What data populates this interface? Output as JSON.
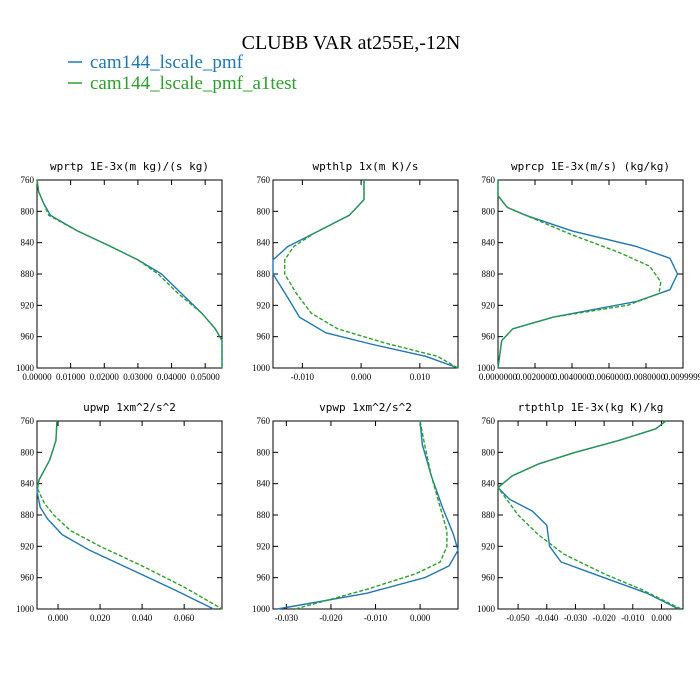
{
  "figure": {
    "title": "CLUBB VAR at255E,-12N",
    "legend": [
      {
        "label": "cam144_lscale_pmf",
        "color": "#1f77b4",
        "dash": "solid"
      },
      {
        "label": "cam144_lscale_pmf_a1test",
        "color": "#2ca02c",
        "dash": "dashed"
      }
    ]
  },
  "chart_data": [
    {
      "type": "line",
      "title": "wprtp  1E-3x(m kg)/(s kg)",
      "xlim": [
        0.0,
        0.055
      ],
      "ylim": [
        760,
        1000
      ],
      "y_inverted": true,
      "xticks": [
        0.0,
        0.01,
        0.02,
        0.03,
        0.04,
        0.05
      ],
      "xtick_labels": [
        "0.00000",
        "0.01000",
        "0.02000",
        "0.03000",
        "0.04000",
        "0.05000"
      ],
      "yticks": [
        760,
        800,
        840,
        880,
        920,
        960,
        1000
      ],
      "ytick_labels": [
        "760",
        "800",
        "840",
        "880",
        "920",
        "960",
        "1000"
      ],
      "series": [
        {
          "name": "cam144_lscale_pmf",
          "color": "#1f77b4",
          "dash": "solid",
          "points": [
            [
              0.0,
              760
            ],
            [
              0.0005,
              775
            ],
            [
              0.002,
              790
            ],
            [
              0.004,
              805
            ],
            [
              0.012,
              825
            ],
            [
              0.022,
              845
            ],
            [
              0.03,
              862
            ],
            [
              0.037,
              880
            ],
            [
              0.043,
              905
            ],
            [
              0.049,
              930
            ],
            [
              0.053,
              950
            ],
            [
              0.055,
              965
            ],
            [
              0.055,
              1000
            ]
          ]
        },
        {
          "name": "cam144_lscale_pmf_a1test",
          "color": "#2ca02c",
          "dash": "dashed",
          "points": [
            [
              0.0,
              760
            ],
            [
              0.0005,
              775
            ],
            [
              0.002,
              790
            ],
            [
              0.0035,
              805
            ],
            [
              0.012,
              825
            ],
            [
              0.022,
              845
            ],
            [
              0.03,
              862
            ],
            [
              0.036,
              880
            ],
            [
              0.042,
              905
            ],
            [
              0.049,
              930
            ],
            [
              0.053,
              950
            ],
            [
              0.055,
              965
            ],
            [
              0.055,
              1000
            ]
          ]
        }
      ]
    },
    {
      "type": "line",
      "title": "wpthlp  1x(m K)/s",
      "xlim": [
        -0.015,
        0.0165
      ],
      "ylim": [
        760,
        1000
      ],
      "y_inverted": true,
      "xticks": [
        -0.01,
        0.0,
        0.01
      ],
      "xtick_labels": [
        "-0.010",
        "0.000",
        "0.010"
      ],
      "yticks": [
        760,
        800,
        840,
        880,
        920,
        960,
        1000
      ],
      "ytick_labels": [
        "760",
        "800",
        "840",
        "880",
        "920",
        "960",
        "1000"
      ],
      "series": [
        {
          "name": "cam144_lscale_pmf",
          "color": "#1f77b4",
          "dash": "solid",
          "points": [
            [
              0.0005,
              760
            ],
            [
              0.0005,
              785
            ],
            [
              -0.002,
              805
            ],
            [
              -0.008,
              828
            ],
            [
              -0.0125,
              845
            ],
            [
              -0.015,
              862
            ],
            [
              -0.015,
              880
            ],
            [
              -0.0125,
              910
            ],
            [
              -0.0105,
              935
            ],
            [
              -0.006,
              955
            ],
            [
              0.002,
              970
            ],
            [
              0.011,
              985
            ],
            [
              0.0165,
              1000
            ]
          ]
        },
        {
          "name": "cam144_lscale_pmf_a1test",
          "color": "#2ca02c",
          "dash": "dashed",
          "points": [
            [
              0.0005,
              760
            ],
            [
              0.0005,
              785
            ],
            [
              -0.002,
              805
            ],
            [
              -0.008,
              828
            ],
            [
              -0.0115,
              845
            ],
            [
              -0.013,
              862
            ],
            [
              -0.013,
              880
            ],
            [
              -0.011,
              905
            ],
            [
              -0.0085,
              930
            ],
            [
              -0.004,
              950
            ],
            [
              0.004,
              968
            ],
            [
              0.013,
              985
            ],
            [
              0.0165,
              1000
            ]
          ]
        }
      ]
    },
    {
      "type": "line",
      "title": "wprcp  1E-3x(m/s) (kg/kg)",
      "xlim": [
        0.0,
        0.01
      ],
      "ylim": [
        760,
        1000
      ],
      "y_inverted": true,
      "xticks": [
        0.0,
        0.002,
        0.004,
        0.006,
        0.008,
        0.01
      ],
      "xtick_labels": [
        "0.0000000",
        "0.0020000",
        "0.0040000",
        "0.0060000",
        "0.0080000",
        "0.0099999"
      ],
      "yticks": [
        760,
        800,
        840,
        880,
        920,
        960,
        1000
      ],
      "ytick_labels": [
        "760",
        "800",
        "840",
        "880",
        "920",
        "960",
        "1000"
      ],
      "series": [
        {
          "name": "cam144_lscale_pmf",
          "color": "#1f77b4",
          "dash": "solid",
          "points": [
            [
              0.0,
              760
            ],
            [
              0.0,
              780
            ],
            [
              0.0005,
              795
            ],
            [
              0.0015,
              805
            ],
            [
              0.004,
              825
            ],
            [
              0.0075,
              845
            ],
            [
              0.0093,
              860
            ],
            [
              0.0097,
              880
            ],
            [
              0.0093,
              900
            ],
            [
              0.0075,
              915
            ],
            [
              0.003,
              935
            ],
            [
              0.0008,
              950
            ],
            [
              0.0002,
              965
            ],
            [
              0.0,
              1000
            ]
          ]
        },
        {
          "name": "cam144_lscale_pmf_a1test",
          "color": "#2ca02c",
          "dash": "dashed",
          "points": [
            [
              0.0,
              760
            ],
            [
              0.0,
              780
            ],
            [
              0.0005,
              795
            ],
            [
              0.0015,
              805
            ],
            [
              0.004,
              830
            ],
            [
              0.0065,
              852
            ],
            [
              0.0082,
              870
            ],
            [
              0.0088,
              890
            ],
            [
              0.0087,
              905
            ],
            [
              0.007,
              920
            ],
            [
              0.003,
              935
            ],
            [
              0.0008,
              950
            ],
            [
              0.0002,
              965
            ],
            [
              0.0,
              1000
            ]
          ]
        }
      ]
    },
    {
      "type": "line",
      "title": "upwp  1xm^2/s^2",
      "xlim": [
        -0.01,
        0.078
      ],
      "ylim": [
        760,
        1000
      ],
      "y_inverted": true,
      "xticks": [
        0.0,
        0.02,
        0.04,
        0.06
      ],
      "xtick_labels": [
        "0.000",
        "0.020",
        "0.040",
        "0.060"
      ],
      "yticks": [
        760,
        800,
        840,
        880,
        920,
        960,
        1000
      ],
      "ytick_labels": [
        "760",
        "800",
        "840",
        "880",
        "920",
        "960",
        "1000"
      ],
      "series": [
        {
          "name": "cam144_lscale_pmf",
          "color": "#1f77b4",
          "dash": "solid",
          "points": [
            [
              -0.0005,
              760
            ],
            [
              -0.001,
              785
            ],
            [
              -0.004,
              810
            ],
            [
              -0.009,
              835
            ],
            [
              -0.01,
              850
            ],
            [
              -0.0085,
              870
            ],
            [
              -0.005,
              885
            ],
            [
              0.002,
              905
            ],
            [
              0.015,
              925
            ],
            [
              0.035,
              950
            ],
            [
              0.055,
              975
            ],
            [
              0.074,
              1000
            ]
          ]
        },
        {
          "name": "cam144_lscale_pmf_a1test",
          "color": "#2ca02c",
          "dash": "dashed",
          "points": [
            [
              -0.0005,
              760
            ],
            [
              -0.001,
              785
            ],
            [
              -0.004,
              810
            ],
            [
              -0.009,
              835
            ],
            [
              -0.01,
              845
            ],
            [
              -0.0065,
              865
            ],
            [
              -0.002,
              880
            ],
            [
              0.006,
              900
            ],
            [
              0.02,
              920
            ],
            [
              0.04,
              945
            ],
            [
              0.06,
              972
            ],
            [
              0.078,
              1000
            ]
          ]
        }
      ]
    },
    {
      "type": "line",
      "title": "vpwp  1xm^2/s^2",
      "xlim": [
        -0.033,
        0.0085
      ],
      "ylim": [
        760,
        1000
      ],
      "y_inverted": true,
      "xticks": [
        -0.03,
        -0.02,
        -0.01,
        0.0
      ],
      "xtick_labels": [
        "-0.030",
        "-0.020",
        "-0.010",
        "0.000"
      ],
      "yticks": [
        760,
        800,
        840,
        880,
        920,
        960,
        1000
      ],
      "ytick_labels": [
        "760",
        "800",
        "840",
        "880",
        "920",
        "960",
        "1000"
      ],
      "series": [
        {
          "name": "cam144_lscale_pmf",
          "color": "#1f77b4",
          "dash": "solid",
          "points": [
            [
              0.0,
              760
            ],
            [
              0.0005,
              790
            ],
            [
              0.0025,
              830
            ],
            [
              0.005,
              870
            ],
            [
              0.0075,
              905
            ],
            [
              0.0085,
              925
            ],
            [
              0.0065,
              945
            ],
            [
              0.001,
              960
            ],
            [
              -0.012,
              980
            ],
            [
              -0.032,
              1000
            ]
          ]
        },
        {
          "name": "cam144_lscale_pmf_a1test",
          "color": "#2ca02c",
          "dash": "dashed",
          "points": [
            [
              0.0,
              760
            ],
            [
              0.001,
              790
            ],
            [
              0.0025,
              830
            ],
            [
              0.0045,
              870
            ],
            [
              0.006,
              900
            ],
            [
              0.006,
              920
            ],
            [
              0.0045,
              940
            ],
            [
              -0.001,
              955
            ],
            [
              -0.012,
              975
            ],
            [
              -0.028,
              1000
            ]
          ]
        }
      ]
    },
    {
      "type": "line",
      "title": "rtpthlp  1E-3x(kg K)/kg",
      "xlim": [
        -0.057,
        0.0075
      ],
      "ylim": [
        760,
        1000
      ],
      "y_inverted": true,
      "xticks": [
        -0.05,
        -0.04,
        -0.03,
        -0.02,
        -0.01,
        0.0
      ],
      "xtick_labels": [
        "-0.050",
        "-0.040",
        "-0.030",
        "-0.020",
        "-0.010",
        "0.000"
      ],
      "yticks": [
        760,
        800,
        840,
        880,
        920,
        960,
        1000
      ],
      "ytick_labels": [
        "760",
        "800",
        "840",
        "880",
        "920",
        "960",
        "1000"
      ],
      "series": [
        {
          "name": "cam144_lscale_pmf",
          "color": "#1f77b4",
          "dash": "solid",
          "points": [
            [
              0.0015,
              760
            ],
            [
              -0.002,
              770
            ],
            [
              -0.015,
              785
            ],
            [
              -0.03,
              800
            ],
            [
              -0.043,
              815
            ],
            [
              -0.052,
              830
            ],
            [
              -0.057,
              845
            ],
            [
              -0.053,
              860
            ],
            [
              -0.045,
              875
            ],
            [
              -0.04,
              893
            ],
            [
              -0.039,
              920
            ],
            [
              -0.035,
              940
            ],
            [
              -0.02,
              960
            ],
            [
              -0.005,
              980
            ],
            [
              0.006,
              1000
            ]
          ]
        },
        {
          "name": "cam144_lscale_pmf_a1test",
          "color": "#2ca02c",
          "dash": "dashed",
          "points": [
            [
              0.0015,
              760
            ],
            [
              -0.002,
              770
            ],
            [
              -0.015,
              785
            ],
            [
              -0.03,
              800
            ],
            [
              -0.043,
              815
            ],
            [
              -0.052,
              830
            ],
            [
              -0.057,
              845
            ],
            [
              -0.054,
              860
            ],
            [
              -0.05,
              880
            ],
            [
              -0.043,
              905
            ],
            [
              -0.034,
              930
            ],
            [
              -0.02,
              955
            ],
            [
              -0.007,
              975
            ],
            [
              0.004,
              995
            ],
            [
              0.007,
              1000
            ]
          ]
        }
      ]
    }
  ]
}
